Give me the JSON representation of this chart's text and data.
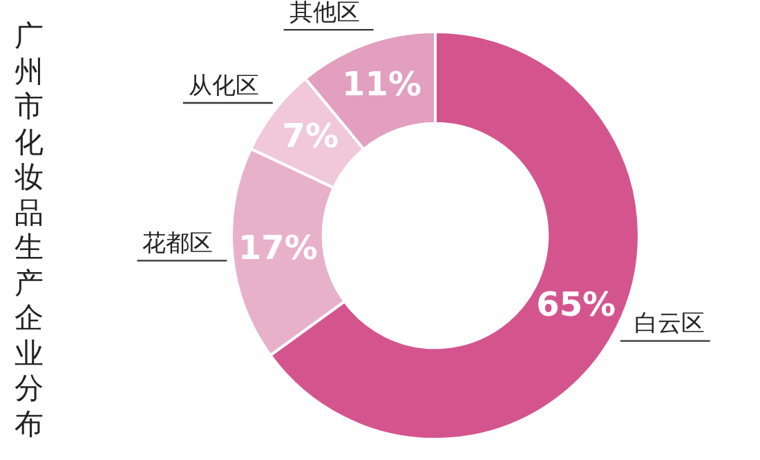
{
  "chart_data": {
    "type": "donut",
    "title": "广州市化妆品生产企业分布",
    "categories": [
      "白云区",
      "花都区",
      "从化区",
      "其他区"
    ],
    "values": [
      65,
      17,
      7,
      11
    ],
    "value_labels": [
      "65%",
      "17%",
      "7%",
      "11%"
    ],
    "colors": [
      "#d4558e",
      "#e8b1ca",
      "#f0c8da",
      "#e29fbf"
    ],
    "legend": false
  }
}
